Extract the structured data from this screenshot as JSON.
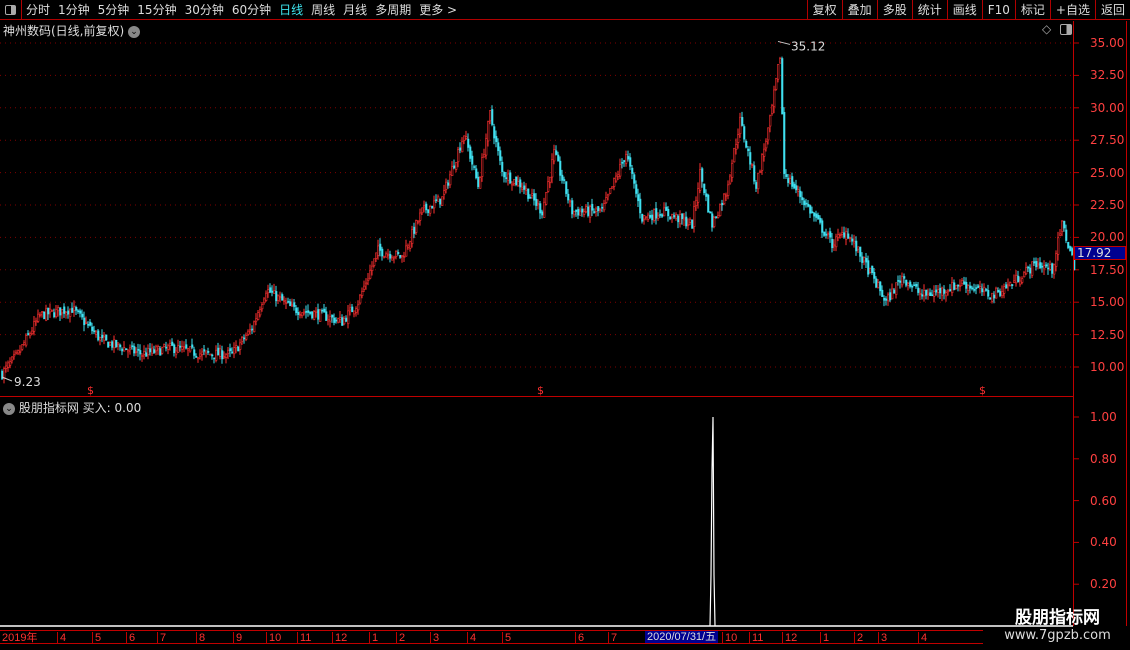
{
  "toolbar": {
    "periods": [
      "分时",
      "1分钟",
      "5分钟",
      "15分钟",
      "30分钟",
      "60分钟",
      "日线",
      "周线",
      "月线",
      "多周期",
      "更多 >"
    ],
    "active_period": "日线",
    "right_buttons": [
      "复权",
      "叠加",
      "多股",
      "统计",
      "画线",
      "F10",
      "标记",
      "+自选",
      "返回"
    ]
  },
  "main": {
    "title": "神州数码(日线,前复权)",
    "current_price": "17.92",
    "high_label": "35.12",
    "low_label": "9.23",
    "price_ticks": [
      "35.00",
      "32.50",
      "30.00",
      "27.50",
      "25.00",
      "22.50",
      "20.00",
      "17.50",
      "15.00",
      "12.50",
      "10.00"
    ]
  },
  "indicator": {
    "title": "股朋指标网 买入: 0.00",
    "ticks": [
      "1.00",
      "0.80",
      "0.60",
      "0.40",
      "0.20"
    ]
  },
  "date_axis": {
    "labels": [
      "2019年",
      "4",
      "5",
      "6",
      "7",
      "8",
      "9",
      "10",
      "11",
      "12",
      "1",
      "2",
      "3",
      "4",
      "5",
      "6",
      "7",
      "10",
      "11",
      "12",
      "1",
      "2",
      "3",
      "4"
    ],
    "cursor_date": "2020/07/31/五"
  },
  "watermark": {
    "name": "股朋指标网",
    "url": "www.7gpzb.com"
  },
  "colors": {
    "up": "#ff3030",
    "down": "#40e0f0",
    "axis": "#c00000",
    "cursor": "#000090"
  },
  "chart_data": {
    "type": "candlestick",
    "ylim": [
      8.5,
      35.5
    ],
    "price_path_by_bar": [
      [
        0,
        9.5
      ],
      [
        8,
        11
      ],
      [
        19,
        14
      ],
      [
        35,
        14.5
      ],
      [
        50,
        12
      ],
      [
        70,
        11
      ],
      [
        85,
        11.5
      ],
      [
        100,
        11
      ],
      [
        115,
        11
      ],
      [
        125,
        13
      ],
      [
        132,
        16
      ],
      [
        145,
        14.5
      ],
      [
        160,
        14
      ],
      [
        170,
        13.5
      ],
      [
        178,
        15
      ],
      [
        188,
        19
      ],
      [
        200,
        18.5
      ],
      [
        210,
        22
      ],
      [
        220,
        23
      ],
      [
        231,
        28
      ],
      [
        238,
        24
      ],
      [
        244,
        29.5
      ],
      [
        250,
        25
      ],
      [
        260,
        24
      ],
      [
        270,
        22
      ],
      [
        276,
        26.5
      ],
      [
        285,
        22
      ],
      [
        300,
        22
      ],
      [
        312,
        26.5
      ],
      [
        320,
        21.5
      ],
      [
        330,
        22
      ],
      [
        345,
        21
      ],
      [
        349,
        25
      ],
      [
        355,
        21
      ],
      [
        362,
        23.5
      ],
      [
        369,
        29
      ],
      [
        377,
        24
      ],
      [
        384,
        29
      ],
      [
        389,
        34
      ],
      [
        391,
        25
      ],
      [
        400,
        23
      ],
      [
        415,
        19.5
      ],
      [
        422,
        20.5
      ],
      [
        435,
        17
      ],
      [
        442,
        15
      ],
      [
        450,
        17
      ],
      [
        460,
        15.5
      ],
      [
        472,
        16
      ],
      [
        480,
        16.5
      ],
      [
        495,
        15.5
      ],
      [
        505,
        16.5
      ],
      [
        517,
        18
      ],
      [
        525,
        17.5
      ],
      [
        530,
        21
      ],
      [
        536,
        17.9
      ]
    ],
    "signal": {
      "date": "2020/07/31",
      "value": 1.0
    },
    "indicator_ylim": [
      0,
      1.05
    ]
  }
}
